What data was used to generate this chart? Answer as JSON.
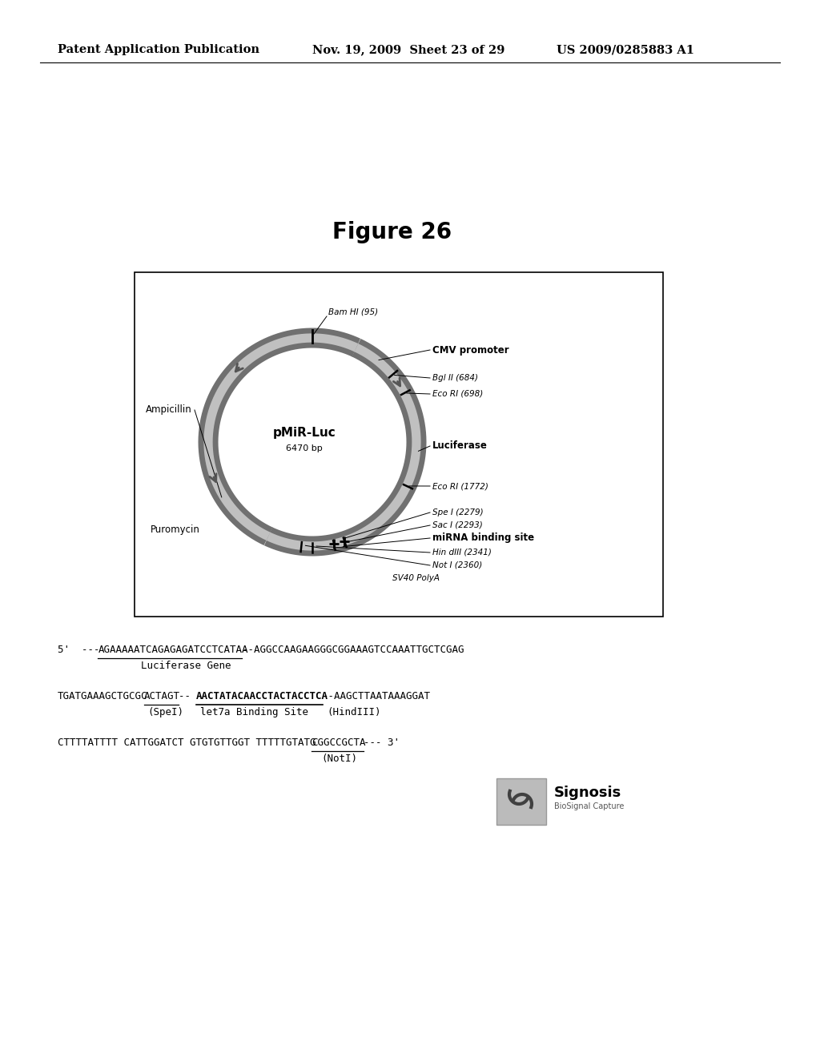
{
  "title": "Figure 26",
  "header_left": "Patent Application Publication",
  "header_mid": "Nov. 19, 2009  Sheet 23 of 29",
  "header_right": "US 2009/0285883 A1",
  "plasmid_name": "pMiR-Luc",
  "plasmid_size": "6470 bp",
  "labels": {
    "BamHI": "Bam HI (95)",
    "CMV": "CMV promoter",
    "BglII": "Bgl II (684)",
    "EcoRI_698": "Eco RI (698)",
    "Ampicillin": "Ampicillin",
    "Luciferase": "Luciferase",
    "EcoRI_1772": "Eco RI (1772)",
    "SpeI": "Spe I (2279)",
    "SacI": "Sac I (2293)",
    "miRNA": "miRNA binding site",
    "HindIII": "Hin dIII (2341)",
    "NotI": "Not I (2360)",
    "SV40": "SV40 PolyA",
    "Puromycin": "Puromycin"
  },
  "background_color": "#ffffff",
  "text_color": "#000000"
}
